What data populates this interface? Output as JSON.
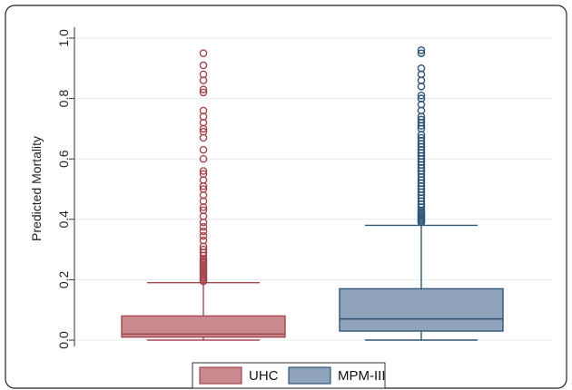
{
  "chart_data": {
    "type": "box",
    "title": "",
    "xlabel": "",
    "ylabel": "Predicted Mortality",
    "ylim": [
      0,
      1.0
    ],
    "yticks": [
      "0.0",
      "0.2",
      "0.4",
      "0.6",
      "0.8",
      "1.0"
    ],
    "grid": true,
    "legend_position": "bottom",
    "series": [
      {
        "name": "UHC",
        "color": "#c98a8f",
        "edge_color": "#a3474f",
        "whisker_low": 0.0,
        "q1": 0.01,
        "median": 0.02,
        "q3": 0.08,
        "whisker_high": 0.19,
        "outliers": [
          0.195,
          0.2,
          0.205,
          0.21,
          0.215,
          0.22,
          0.225,
          0.23,
          0.235,
          0.24,
          0.245,
          0.25,
          0.255,
          0.26,
          0.265,
          0.27,
          0.28,
          0.29,
          0.3,
          0.31,
          0.33,
          0.345,
          0.36,
          0.375,
          0.39,
          0.41,
          0.43,
          0.44,
          0.46,
          0.48,
          0.5,
          0.51,
          0.53,
          0.55,
          0.56,
          0.6,
          0.63,
          0.67,
          0.69,
          0.7,
          0.72,
          0.74,
          0.76,
          0.82,
          0.83,
          0.86,
          0.88,
          0.91,
          0.95
        ]
      },
      {
        "name": "MPM-III",
        "color": "#8fa4bb",
        "edge_color": "#2f5578",
        "whisker_low": 0.0,
        "q1": 0.03,
        "median": 0.07,
        "q3": 0.17,
        "whisker_high": 0.38,
        "outliers": [
          0.39,
          0.395,
          0.4,
          0.405,
          0.41,
          0.415,
          0.42,
          0.425,
          0.43,
          0.44,
          0.45,
          0.46,
          0.47,
          0.48,
          0.49,
          0.5,
          0.51,
          0.52,
          0.53,
          0.54,
          0.55,
          0.56,
          0.57,
          0.58,
          0.59,
          0.6,
          0.61,
          0.62,
          0.63,
          0.64,
          0.65,
          0.66,
          0.67,
          0.68,
          0.7,
          0.71,
          0.72,
          0.73,
          0.74,
          0.76,
          0.78,
          0.8,
          0.81,
          0.84,
          0.86,
          0.88,
          0.9,
          0.95,
          0.96
        ]
      }
    ]
  }
}
